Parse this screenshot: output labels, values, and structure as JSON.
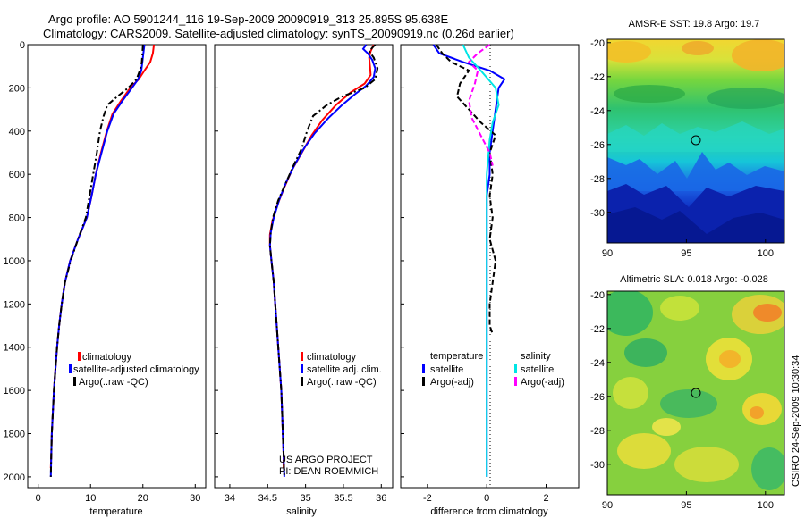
{
  "figure": {
    "title_line1": "Argo profile: AO 5901244_116 19-Sep-2009 20090919_313 25.895S 95.638E",
    "title_line2": "Climatology: CARS2009. Satellite-adjusted climatology: synTS_20090919.nc (0.26d earlier)",
    "credit_project": "US ARGO PROJECT",
    "credit_pi": "PI: DEAN ROEMMICH",
    "stamp": "CSIRO 24-Sep-2009 10:30:34"
  },
  "colors": {
    "climatology": "#ff0000",
    "satellite": "#0000ff",
    "argo": "#000000",
    "sal_satellite": "#00e5e5",
    "sal_argo": "#ff00ff"
  },
  "chart_data": [
    {
      "id": "temperature",
      "type": "line",
      "xlabel": "temperature",
      "ylabel": "",
      "xlim": [
        -2,
        32
      ],
      "ylim": [
        2050,
        0
      ],
      "xticks": [
        0,
        10,
        20,
        30
      ],
      "yticks": [
        0,
        200,
        400,
        600,
        800,
        1000,
        1200,
        1400,
        1600,
        1800,
        2000
      ],
      "legend": [
        "climatology",
        "satellite-adjusted climatology",
        "Argo(..raw -QC)"
      ],
      "series": [
        {
          "name": "climatology",
          "style": "solid",
          "color": "#ff0000",
          "points": [
            [
              22.1,
              0
            ],
            [
              21.9,
              40
            ],
            [
              21.4,
              80
            ],
            [
              20.3,
              120
            ],
            [
              19.2,
              160
            ],
            [
              17.6,
              200
            ],
            [
              15.8,
              260
            ],
            [
              14.2,
              320
            ],
            [
              13.1,
              400
            ],
            [
              12.0,
              500
            ],
            [
              11.0,
              600
            ],
            [
              10.2,
              700
            ],
            [
              9.3,
              800
            ],
            [
              7.6,
              900
            ],
            [
              6.1,
              1000
            ],
            [
              5.1,
              1100
            ],
            [
              4.5,
              1200
            ],
            [
              4.0,
              1300
            ],
            [
              3.6,
              1400
            ],
            [
              3.3,
              1500
            ],
            [
              3.0,
              1600
            ],
            [
              2.8,
              1700
            ],
            [
              2.6,
              1800
            ],
            [
              2.5,
              1900
            ],
            [
              2.4,
              1960
            ]
          ]
        },
        {
          "name": "satellite",
          "style": "solid",
          "color": "#0000ff",
          "points": [
            [
              20.3,
              0
            ],
            [
              20.1,
              40
            ],
            [
              19.9,
              80
            ],
            [
              19.7,
              120
            ],
            [
              19.1,
              160
            ],
            [
              17.9,
              200
            ],
            [
              16.1,
              260
            ],
            [
              14.4,
              320
            ],
            [
              13.2,
              400
            ],
            [
              12.1,
              500
            ],
            [
              11.0,
              600
            ],
            [
              10.2,
              700
            ],
            [
              9.3,
              800
            ],
            [
              7.6,
              900
            ],
            [
              6.1,
              1000
            ],
            [
              5.1,
              1100
            ],
            [
              4.5,
              1200
            ],
            [
              4.0,
              1300
            ],
            [
              3.6,
              1400
            ],
            [
              3.3,
              1500
            ],
            [
              3.0,
              1600
            ],
            [
              2.8,
              1700
            ],
            [
              2.6,
              1800
            ],
            [
              2.5,
              1900
            ],
            [
              2.4,
              2000
            ]
          ]
        },
        {
          "name": "Argo(..raw -QC)",
          "style": "dashdot",
          "color": "#000000",
          "points": [
            [
              20.0,
              0
            ],
            [
              19.9,
              40
            ],
            [
              19.8,
              80
            ],
            [
              19.4,
              120
            ],
            [
              18.8,
              160
            ],
            [
              17.2,
              200
            ],
            [
              15.1,
              240
            ],
            [
              13.2,
              280
            ],
            [
              12.5,
              330
            ],
            [
              11.8,
              400
            ],
            [
              11.2,
              500
            ],
            [
              10.5,
              600
            ],
            [
              9.8,
              700
            ],
            [
              9.1,
              800
            ],
            [
              7.6,
              900
            ],
            [
              6.2,
              1000
            ],
            [
              5.1,
              1100
            ],
            [
              4.5,
              1200
            ],
            [
              4.0,
              1300
            ],
            [
              3.6,
              1400
            ],
            [
              3.3,
              1500
            ],
            [
              3.0,
              1600
            ],
            [
              2.8,
              1700
            ],
            [
              2.6,
              1800
            ],
            [
              2.5,
              1900
            ],
            [
              2.4,
              2000
            ]
          ]
        }
      ]
    },
    {
      "id": "salinity",
      "type": "line",
      "xlabel": "salinity",
      "ylabel": "",
      "xlim": [
        33.8,
        36.15
      ],
      "ylim": [
        2050,
        0
      ],
      "xticks": [
        34,
        34.5,
        35,
        35.5,
        36
      ],
      "legend": [
        "climatology",
        "satellite adj. clim.",
        "Argo(..raw -QC)"
      ],
      "series": [
        {
          "name": "climatology",
          "style": "solid",
          "color": "#ff0000",
          "points": [
            [
              35.9,
              0
            ],
            [
              35.86,
              30
            ],
            [
              35.84,
              60
            ],
            [
              35.85,
              100
            ],
            [
              35.86,
              140
            ],
            [
              35.78,
              180
            ],
            [
              35.6,
              220
            ],
            [
              35.4,
              280
            ],
            [
              35.22,
              350
            ],
            [
              35.08,
              420
            ],
            [
              34.95,
              500
            ],
            [
              34.82,
              580
            ],
            [
              34.72,
              660
            ],
            [
              34.63,
              740
            ],
            [
              34.56,
              820
            ],
            [
              34.53,
              880
            ],
            [
              34.53,
              930
            ],
            [
              34.55,
              1000
            ],
            [
              34.58,
              1100
            ],
            [
              34.6,
              1200
            ],
            [
              34.62,
              1300
            ],
            [
              34.64,
              1400
            ],
            [
              34.66,
              1500
            ],
            [
              34.68,
              1600
            ],
            [
              34.69,
              1700
            ],
            [
              34.7,
              1800
            ],
            [
              34.71,
              1900
            ],
            [
              34.71,
              1960
            ]
          ]
        },
        {
          "name": "satellite",
          "style": "solid",
          "color": "#0000ff",
          "points": [
            [
              35.8,
              0
            ],
            [
              35.76,
              20
            ],
            [
              35.82,
              40
            ],
            [
              35.88,
              70
            ],
            [
              35.92,
              110
            ],
            [
              35.9,
              150
            ],
            [
              35.8,
              190
            ],
            [
              35.65,
              230
            ],
            [
              35.48,
              280
            ],
            [
              35.3,
              340
            ],
            [
              35.12,
              410
            ],
            [
              34.98,
              480
            ],
            [
              34.85,
              560
            ],
            [
              34.74,
              640
            ],
            [
              34.65,
              720
            ],
            [
              34.58,
              800
            ],
            [
              34.54,
              870
            ],
            [
              34.53,
              930
            ],
            [
              34.55,
              1000
            ],
            [
              34.58,
              1100
            ],
            [
              34.6,
              1200
            ],
            [
              34.62,
              1300
            ],
            [
              34.64,
              1400
            ],
            [
              34.66,
              1500
            ],
            [
              34.68,
              1600
            ],
            [
              34.69,
              1700
            ],
            [
              34.7,
              1800
            ],
            [
              34.71,
              1900
            ],
            [
              34.72,
              2000
            ]
          ]
        },
        {
          "name": "Argo(..raw -QC)",
          "style": "dashdot",
          "color": "#000000",
          "points": [
            [
              35.92,
              0
            ],
            [
              35.84,
              30
            ],
            [
              35.9,
              60
            ],
            [
              35.95,
              110
            ],
            [
              35.92,
              160
            ],
            [
              35.78,
              200
            ],
            [
              35.48,
              240
            ],
            [
              35.28,
              280
            ],
            [
              35.1,
              330
            ],
            [
              35.02,
              400
            ],
            [
              34.95,
              480
            ],
            [
              34.84,
              560
            ],
            [
              34.74,
              640
            ],
            [
              34.64,
              720
            ],
            [
              34.57,
              800
            ],
            [
              34.54,
              870
            ],
            [
              34.53,
              930
            ],
            [
              34.55,
              1000
            ],
            [
              34.58,
              1100
            ],
            [
              34.6,
              1200
            ],
            [
              34.62,
              1300
            ],
            [
              34.64,
              1400
            ],
            [
              34.66,
              1500
            ],
            [
              34.68,
              1600
            ],
            [
              34.69,
              1700
            ],
            [
              34.7,
              1800
            ],
            [
              34.71,
              1900
            ],
            [
              34.72,
              2000
            ]
          ]
        }
      ]
    },
    {
      "id": "difference",
      "type": "line",
      "xlabel": "difference from climatology",
      "ylabel": "",
      "xlim": [
        -2.9,
        3.1
      ],
      "ylim": [
        2050,
        0
      ],
      "xticks": [
        -2,
        0,
        2
      ],
      "legend_headers": [
        "temperature",
        "salinity"
      ],
      "legend": [
        "satellite",
        "Argo(-adj)",
        "satellite",
        "Argo(-adj)"
      ],
      "series": [
        {
          "name": "temperature satellite",
          "style": "solid",
          "color": "#0000ff",
          "points": [
            [
              -1.8,
              0
            ],
            [
              -1.6,
              40
            ],
            [
              -0.8,
              80
            ],
            [
              0.1,
              120
            ],
            [
              0.6,
              160
            ],
            [
              0.4,
              200
            ],
            [
              0.3,
              300
            ],
            [
              0.2,
              400
            ],
            [
              0.1,
              500
            ],
            [
              0.1,
              600
            ],
            [
              0.0,
              700
            ],
            [
              0.0,
              800
            ],
            [
              0.0,
              900
            ],
            [
              0.0,
              1000
            ],
            [
              0.0,
              1100
            ],
            [
              0.0,
              1200
            ],
            [
              0.0,
              1300
            ],
            [
              0.0,
              1400
            ],
            [
              0.0,
              1500
            ],
            [
              0.0,
              1600
            ],
            [
              0.0,
              1700
            ],
            [
              0.0,
              1800
            ],
            [
              0.0,
              1900
            ],
            [
              0.0,
              2000
            ]
          ]
        },
        {
          "name": "temperature Argo(-adj)",
          "style": "dashed",
          "color": "#000000",
          "points": [
            [
              -1.7,
              0
            ],
            [
              -1.5,
              40
            ],
            [
              -1.2,
              80
            ],
            [
              -0.6,
              120
            ],
            [
              -0.9,
              180
            ],
            [
              -1.0,
              240
            ],
            [
              -0.6,
              300
            ],
            [
              -0.2,
              360
            ],
            [
              0.3,
              420
            ],
            [
              0.1,
              500
            ],
            [
              0.2,
              600
            ],
            [
              0.1,
              700
            ],
            [
              0.2,
              800
            ],
            [
              0.1,
              900
            ],
            [
              0.3,
              1000
            ],
            [
              0.2,
              1100
            ],
            [
              0.1,
              1200
            ],
            [
              0.1,
              1300
            ],
            [
              0.2,
              1340
            ]
          ]
        },
        {
          "name": "salinity satellite",
          "style": "solid",
          "color": "#00e5e5",
          "points": [
            [
              -0.8,
              0
            ],
            [
              -0.6,
              60
            ],
            [
              -0.2,
              120
            ],
            [
              0.3,
              200
            ],
            [
              0.4,
              280
            ],
            [
              0.2,
              360
            ],
            [
              0.1,
              440
            ],
            [
              0.0,
              600
            ],
            [
              0.0,
              800
            ],
            [
              0.0,
              1000
            ],
            [
              0.0,
              1200
            ],
            [
              0.0,
              1400
            ],
            [
              0.0,
              1600
            ],
            [
              0.0,
              1800
            ],
            [
              0.0,
              2000
            ]
          ]
        },
        {
          "name": "salinity Argo(-adj)",
          "style": "dashed",
          "color": "#ff00ff",
          "points": [
            [
              0.1,
              0
            ],
            [
              -0.3,
              40
            ],
            [
              -0.6,
              80
            ],
            [
              -0.3,
              120
            ],
            [
              -0.4,
              180
            ],
            [
              -0.6,
              260
            ],
            [
              -0.5,
              340
            ],
            [
              -0.2,
              420
            ],
            [
              0.1,
              500
            ],
            [
              0.2,
              560
            ]
          ]
        }
      ]
    },
    {
      "id": "sst_map",
      "type": "heatmap",
      "title": "AMSR-E SST: 19.8  Argo: 19.7",
      "xlim": [
        90,
        101.2
      ],
      "ylim": [
        -31.8,
        -19.8
      ],
      "xticks": [
        90,
        95,
        100
      ],
      "yticks": [
        -20,
        -22,
        -24,
        -26,
        -28,
        -30
      ],
      "marker": {
        "lon": 95.638,
        "lat": -25.895
      }
    },
    {
      "id": "sla_map",
      "type": "heatmap",
      "title": "Altimetric SLA: 0.018  Argo: -0.028",
      "xlim": [
        90,
        101.2
      ],
      "ylim": [
        -31.8,
        -19.8
      ],
      "xticks": [
        90,
        95,
        100
      ],
      "yticks": [
        -20,
        -22,
        -24,
        -26,
        -28,
        -30
      ],
      "marker": {
        "lon": 95.638,
        "lat": -25.895
      }
    }
  ]
}
